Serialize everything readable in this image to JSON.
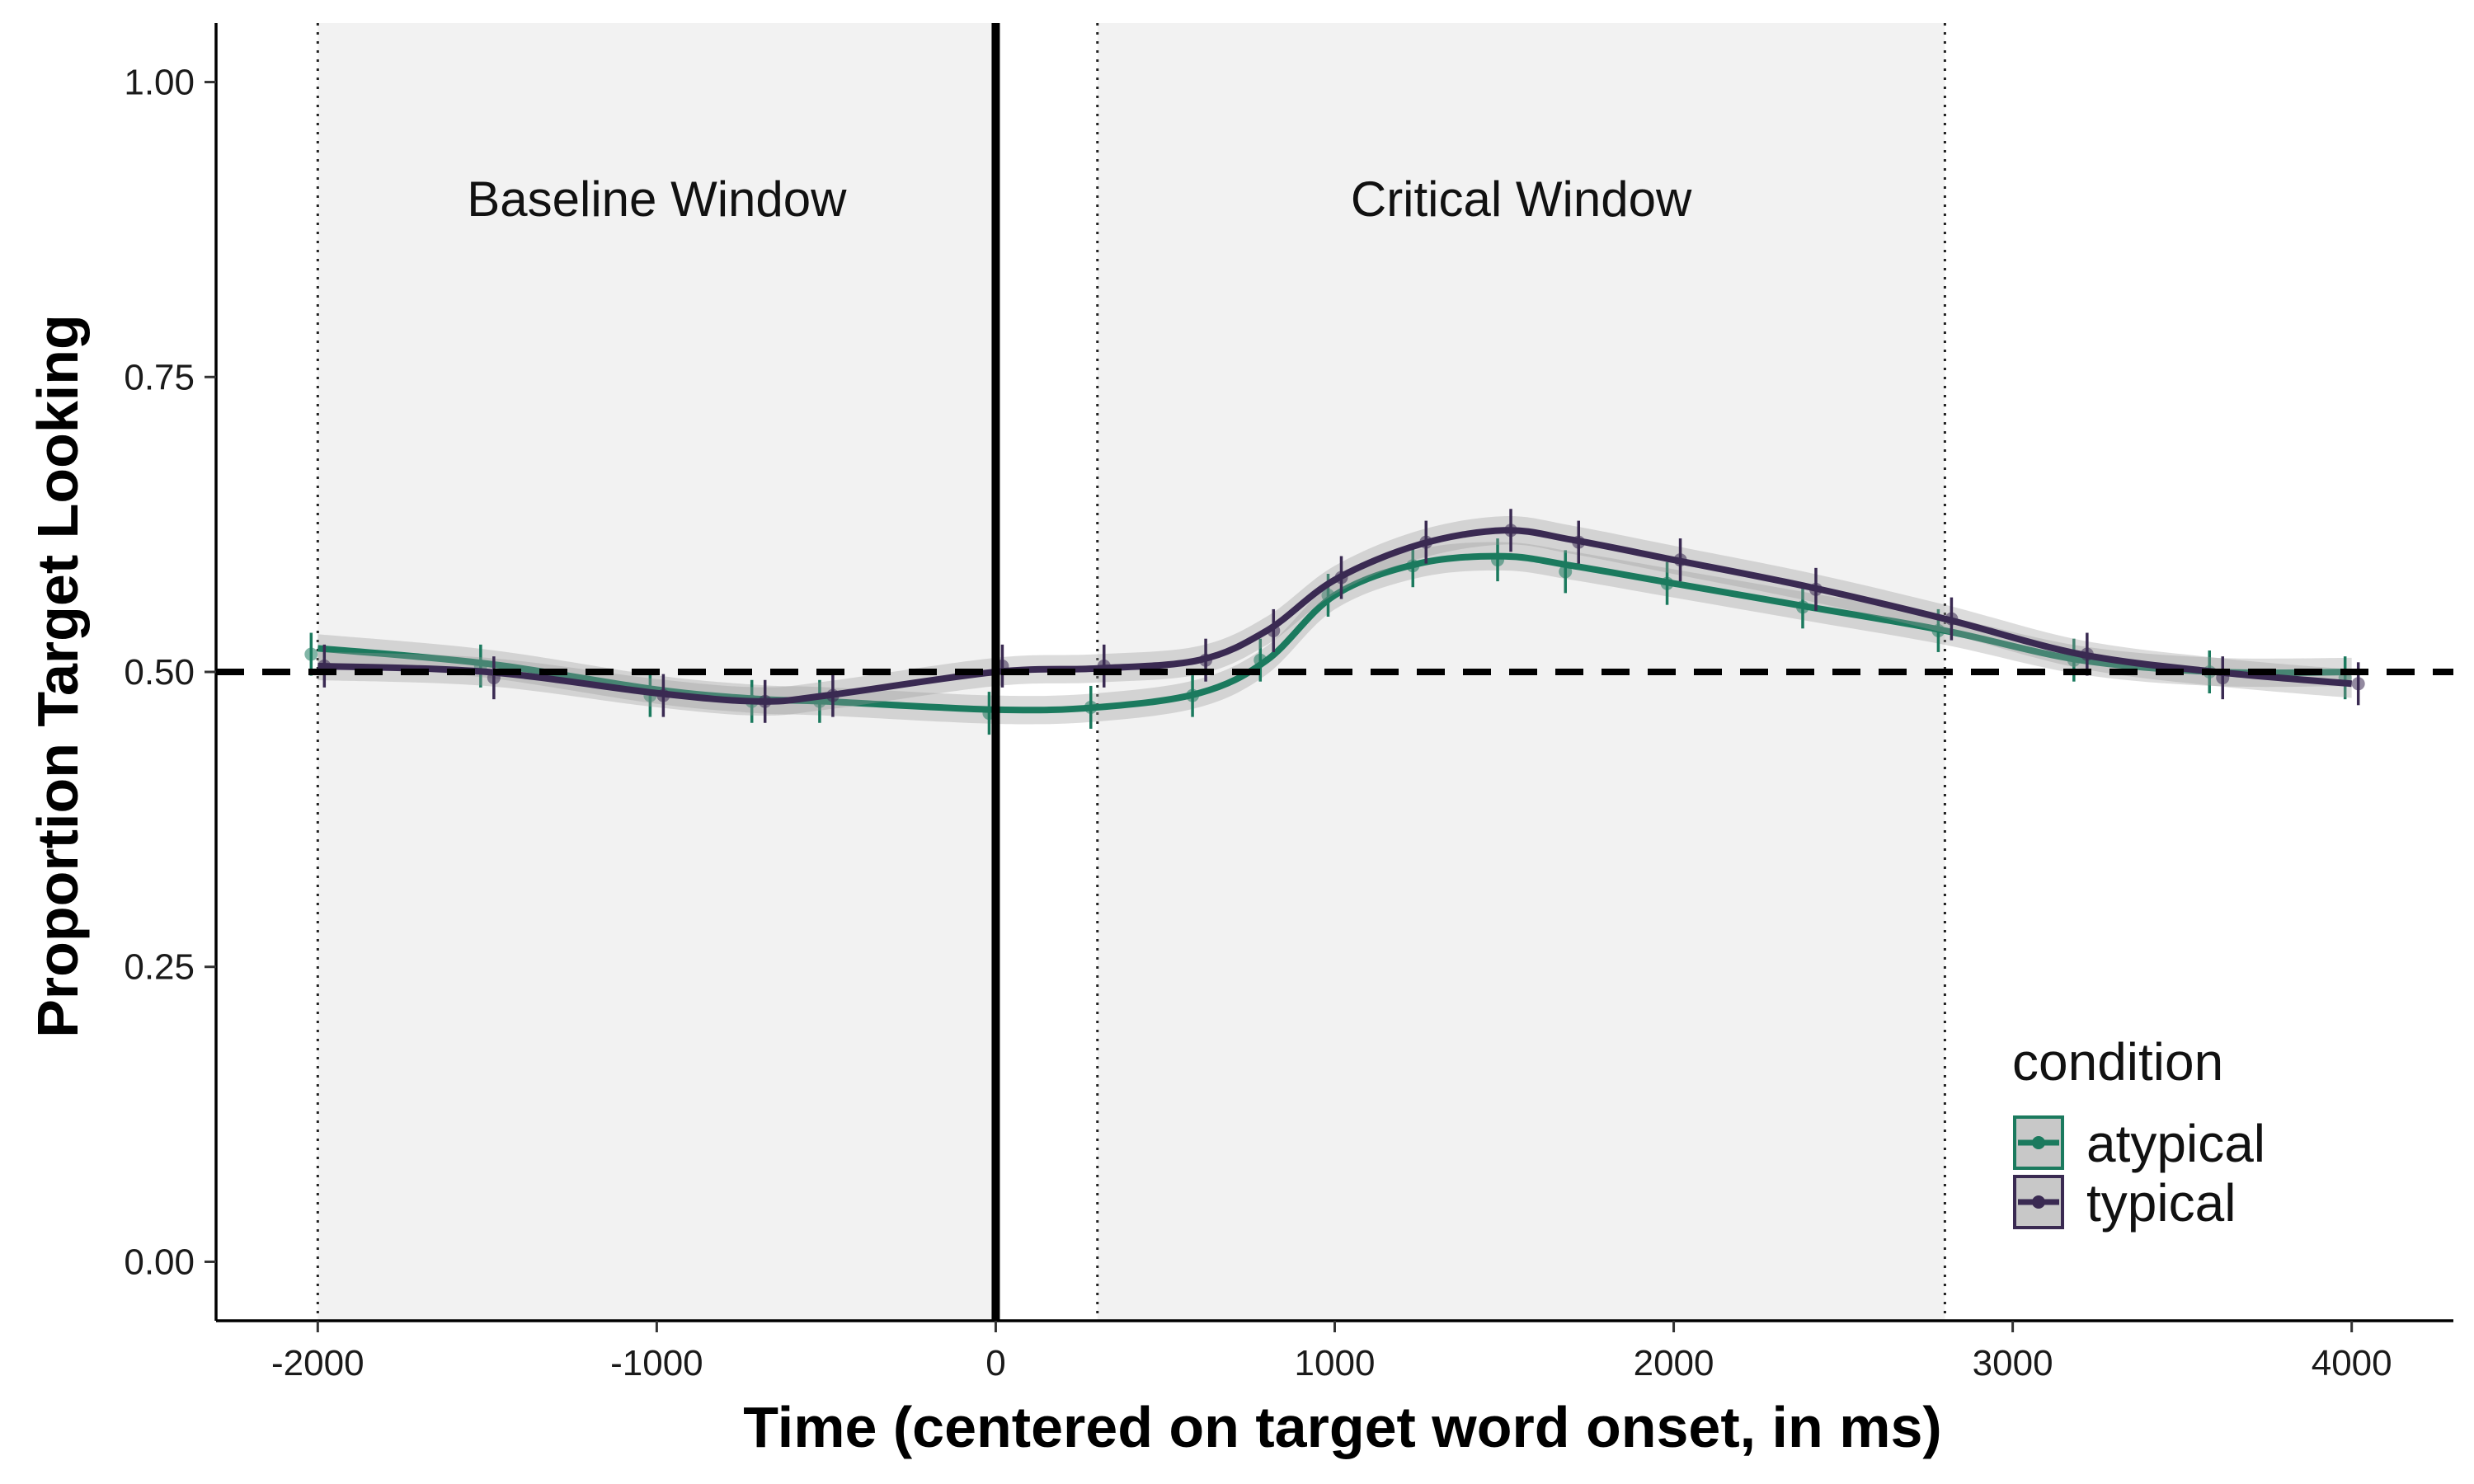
{
  "chart_data": {
    "type": "line",
    "title": "",
    "xlabel": "Time (centered on target word onset, in ms)",
    "ylabel": "Proportion Target Looking",
    "xlim": [
      -2300,
      4300
    ],
    "ylim": [
      -0.05,
      1.05
    ],
    "x_ticks": [
      -2000,
      -1000,
      0,
      1000,
      2000,
      3000,
      4000
    ],
    "x_tick_labels": [
      "-2000",
      "-1000",
      "0",
      "1000",
      "2000",
      "3000",
      "4000"
    ],
    "y_ticks": [
      0,
      0.25,
      0.5,
      0.75,
      1.0
    ],
    "y_tick_labels": [
      "0.00",
      "0.25",
      "0.50",
      "0.75",
      "1.00"
    ],
    "grid": false,
    "reference_lines": {
      "chance_level_y": 0.5,
      "target_onset_x": 0
    },
    "windows": [
      {
        "label": "Baseline Window",
        "start": -2000,
        "end": 0
      },
      {
        "label": "Critical Window",
        "start": 300,
        "end": 2800
      }
    ],
    "legend": {
      "title": "condition",
      "position": "bottom-right"
    },
    "series": [
      {
        "name": "atypical",
        "color": "#1b7a5e",
        "x": [
          -2000,
          -1500,
          -1000,
          -700,
          -500,
          0,
          300,
          600,
          800,
          1000,
          1250,
          1500,
          1700,
          2000,
          2400,
          2800,
          3200,
          3600,
          4000
        ],
        "y": [
          0.52,
          0.507,
          0.485,
          0.477,
          0.475,
          0.468,
          0.47,
          0.482,
          0.51,
          0.565,
          0.592,
          0.598,
          0.59,
          0.575,
          0.555,
          0.535,
          0.51,
          0.5,
          0.5
        ],
        "points_y": [
          0.515,
          0.505,
          0.48,
          0.475,
          0.475,
          0.465,
          0.47,
          0.48,
          0.51,
          0.565,
          0.59,
          0.595,
          0.585,
          0.575,
          0.555,
          0.535,
          0.51,
          0.5,
          0.495
        ]
      },
      {
        "name": "typical",
        "color": "#3a2a52",
        "x": [
          -2000,
          -1500,
          -1000,
          -700,
          -500,
          0,
          300,
          600,
          800,
          1000,
          1250,
          1500,
          1700,
          2000,
          2400,
          2800,
          3200,
          3600,
          4000
        ],
        "y": [
          0.505,
          0.5,
          0.482,
          0.475,
          0.48,
          0.5,
          0.503,
          0.51,
          0.535,
          0.578,
          0.608,
          0.62,
          0.612,
          0.595,
          0.572,
          0.545,
          0.515,
          0.5,
          0.49
        ],
        "points_y": [
          0.505,
          0.495,
          0.48,
          0.475,
          0.48,
          0.505,
          0.505,
          0.51,
          0.535,
          0.58,
          0.61,
          0.62,
          0.61,
          0.595,
          0.57,
          0.545,
          0.515,
          0.495,
          0.49
        ]
      }
    ]
  }
}
